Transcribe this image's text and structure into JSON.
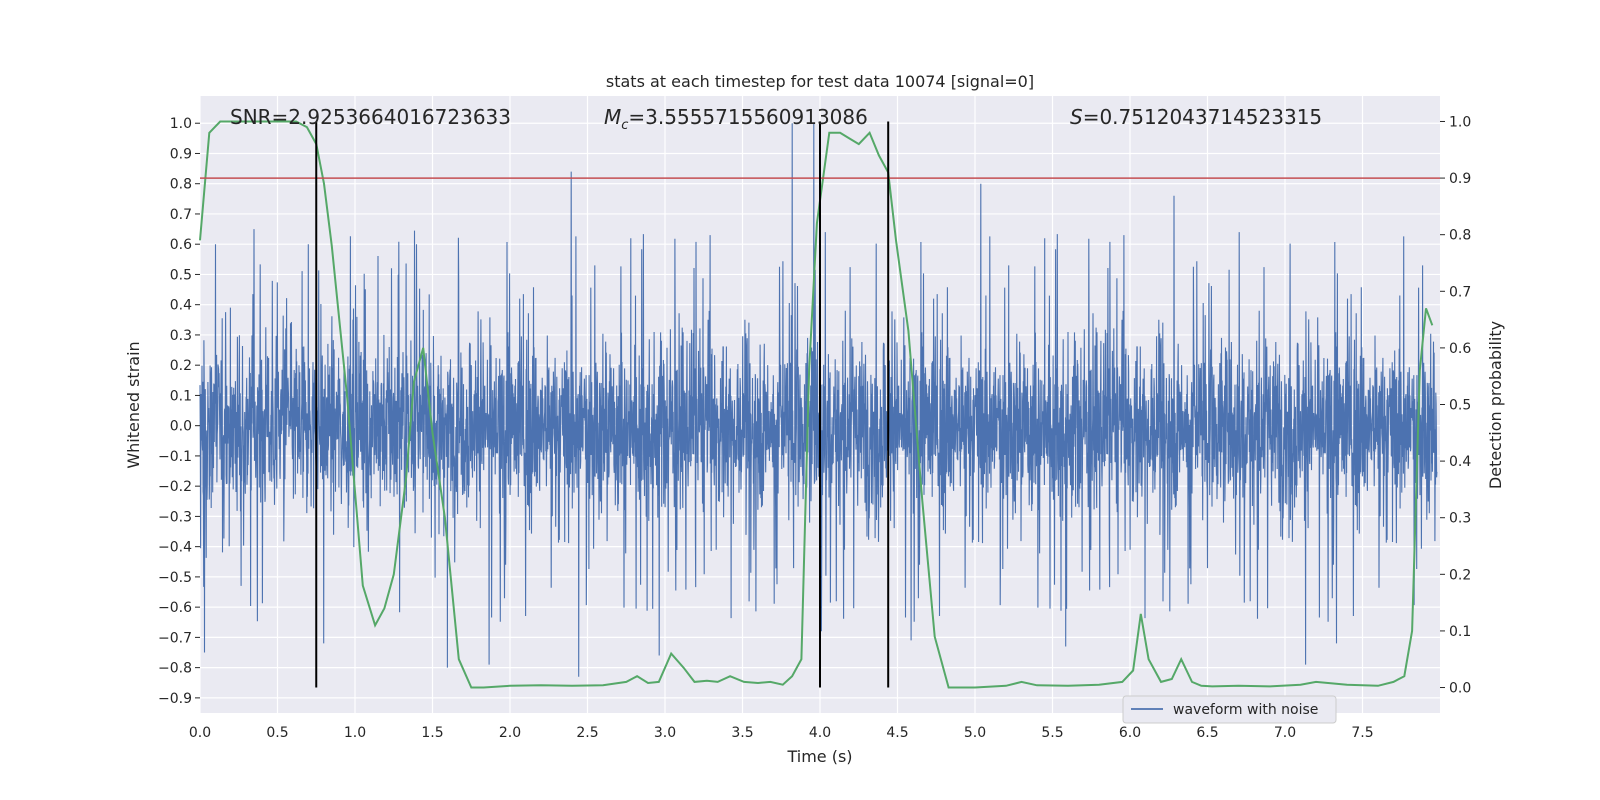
{
  "chart_data": {
    "type": "line",
    "title": "stats at each timestep for test data 10074 [signal=0]",
    "xlabel": "Time (s)",
    "ylabel": "Whitened strain",
    "y2label": "Detection probability",
    "xlim": [
      0.0,
      8.0
    ],
    "ylim": [
      -0.95,
      1.09
    ],
    "y2lim": [
      -0.045,
      1.045
    ],
    "xticks": [
      "0.0",
      "0.5",
      "1.0",
      "1.5",
      "2.0",
      "2.5",
      "3.0",
      "3.5",
      "4.0",
      "4.5",
      "5.0",
      "5.5",
      "6.0",
      "6.5",
      "7.0",
      "7.5"
    ],
    "yticks": [
      "1.0",
      "0.9",
      "0.8",
      "0.7",
      "0.6",
      "0.5",
      "0.4",
      "0.3",
      "0.2",
      "0.1",
      "0.0",
      "−0.1",
      "−0.2",
      "−0.3",
      "−0.4",
      "−0.5",
      "−0.6",
      "−0.7",
      "−0.8",
      "−0.9"
    ],
    "y2ticks": [
      "1.0",
      "0.9",
      "0.8",
      "0.7",
      "0.6",
      "0.5",
      "0.4",
      "0.3",
      "0.2",
      "0.1",
      "0.0"
    ],
    "annotations": {
      "snr": "SNR=2.9253664016723633",
      "mc_symbol": "M",
      "mc_sub": "c",
      "mc_value": "=3.5555715560913086",
      "s_symbol": "S",
      "s_value": "=0.7512043714523315"
    },
    "legend": {
      "label": "waveform with noise",
      "position": "lower-right"
    },
    "threshold_y2": 0.9,
    "vlines_x": [
      0.75,
      4.0,
      4.44
    ],
    "series": [
      {
        "name": "waveform with noise",
        "color": "#4c72b0",
        "noise_model": "random whitened strain samples",
        "core_band": [
          -0.4,
          0.4
        ],
        "peaks": [
          {
            "x": 0.03,
            "y": -0.75
          },
          {
            "x": 0.1,
            "y": 0.6
          },
          {
            "x": 0.35,
            "y": 0.65
          },
          {
            "x": 0.7,
            "y": 0.6
          },
          {
            "x": 0.8,
            "y": -0.72
          },
          {
            "x": 1.4,
            "y": 0.6
          },
          {
            "x": 1.6,
            "y": -0.8
          },
          {
            "x": 1.87,
            "y": -0.79
          },
          {
            "x": 2.4,
            "y": 0.84
          },
          {
            "x": 2.45,
            "y": -0.83
          },
          {
            "x": 2.97,
            "y": -0.76
          },
          {
            "x": 3.83,
            "y": 1.0
          },
          {
            "x": 3.97,
            "y": 1.0
          },
          {
            "x": 4.02,
            "y": -0.68
          },
          {
            "x": 4.6,
            "y": -0.71
          },
          {
            "x": 5.05,
            "y": 0.8
          },
          {
            "x": 5.6,
            "y": -0.73
          },
          {
            "x": 6.3,
            "y": 0.76
          },
          {
            "x": 7.15,
            "y": -0.79
          },
          {
            "x": 7.35,
            "y": -0.72
          }
        ]
      },
      {
        "name": "detection probability",
        "color": "#55a868",
        "axis": "y2",
        "x": [
          0.0,
          0.06,
          0.13,
          0.25,
          0.4,
          0.55,
          0.62,
          0.69,
          0.75,
          0.8,
          0.85,
          0.95,
          1.05,
          1.13,
          1.19,
          1.25,
          1.33,
          1.38,
          1.44,
          1.5,
          1.58,
          1.67,
          1.75,
          1.83,
          2.0,
          2.2,
          2.4,
          2.6,
          2.75,
          2.82,
          2.89,
          2.96,
          3.04,
          3.12,
          3.19,
          3.27,
          3.34,
          3.42,
          3.51,
          3.6,
          3.68,
          3.76,
          3.82,
          3.88,
          3.93,
          3.98,
          4.06,
          4.13,
          4.19,
          4.25,
          4.32,
          4.38,
          4.44,
          4.49,
          4.57,
          4.66,
          4.74,
          4.83,
          4.92,
          5.0,
          5.2,
          5.3,
          5.4,
          5.6,
          5.8,
          5.95,
          6.02,
          6.07,
          6.12,
          6.2,
          6.27,
          6.33,
          6.4,
          6.46,
          6.53,
          6.7,
          6.9,
          7.1,
          7.2,
          7.4,
          7.6,
          7.7,
          7.77,
          7.82,
          7.87,
          7.91,
          7.95
        ],
        "y": [
          0.79,
          0.98,
          1.0,
          1.0,
          1.0,
          1.0,
          1.0,
          0.99,
          0.96,
          0.89,
          0.78,
          0.51,
          0.18,
          0.11,
          0.14,
          0.2,
          0.37,
          0.54,
          0.6,
          0.45,
          0.3,
          0.05,
          0.0,
          0.0,
          0.003,
          0.004,
          0.003,
          0.004,
          0.01,
          0.02,
          0.008,
          0.01,
          0.06,
          0.035,
          0.01,
          0.012,
          0.01,
          0.02,
          0.01,
          0.008,
          0.01,
          0.005,
          0.02,
          0.05,
          0.56,
          0.82,
          0.98,
          0.98,
          0.97,
          0.96,
          0.98,
          0.94,
          0.91,
          0.79,
          0.63,
          0.33,
          0.09,
          0.0,
          0.0,
          0.0,
          0.003,
          0.01,
          0.004,
          0.003,
          0.005,
          0.01,
          0.03,
          0.13,
          0.05,
          0.01,
          0.015,
          0.05,
          0.01,
          0.003,
          0.002,
          0.003,
          0.002,
          0.005,
          0.01,
          0.005,
          0.003,
          0.01,
          0.02,
          0.1,
          0.56,
          0.67,
          0.64
        ]
      }
    ],
    "colors": {
      "background": "#eaeaf2",
      "grid": "#ffffff",
      "waveform": "#4c72b0",
      "probability": "#55a868",
      "threshold": "#c44e52",
      "vline": "#000000"
    }
  }
}
